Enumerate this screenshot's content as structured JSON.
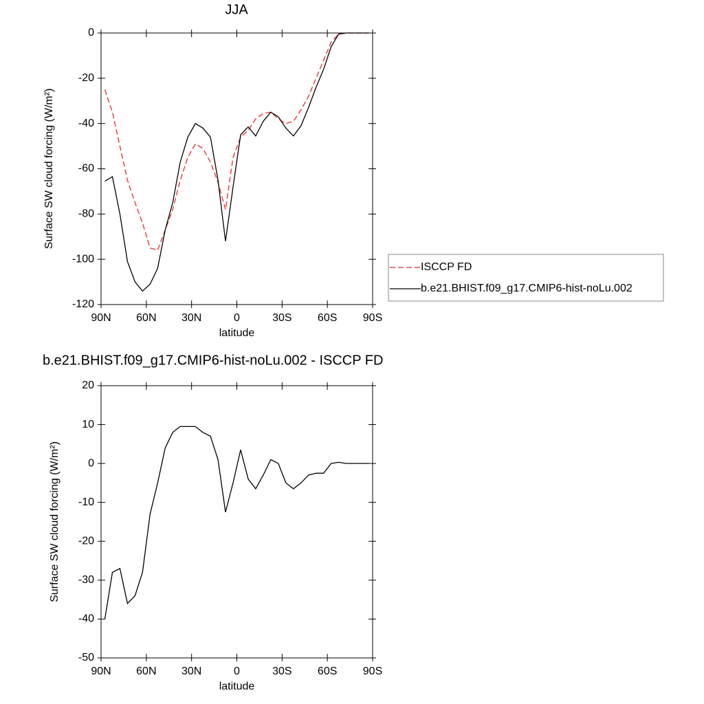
{
  "chart_data": [
    {
      "type": "line",
      "title": "JJA",
      "xlabel": "latitude",
      "ylabel": "Surface SW cloud forcing (W/m²)",
      "x": [
        87.5,
        82.5,
        77.5,
        72.5,
        67.5,
        62.5,
        57.5,
        52.5,
        47.5,
        42.5,
        37.5,
        32.5,
        27.5,
        22.5,
        17.5,
        12.5,
        7.5,
        2.5,
        -2.5,
        -7.5,
        -12.5,
        -17.5,
        -22.5,
        -27.5,
        -32.5,
        -37.5,
        -42.5,
        -47.5,
        -52.5,
        -57.5,
        -62.5,
        -67.5,
        -72.5,
        -77.5,
        -82.5,
        -87.5
      ],
      "series": [
        {
          "name": "ISCCP FD",
          "color": "#e8282c",
          "dashed": true,
          "values": [
            -25,
            -35,
            -50,
            -65,
            -75,
            -84,
            -95,
            -96,
            -87,
            -78,
            -65,
            -55,
            -49,
            -51,
            -57,
            -66,
            -78,
            -55,
            -46,
            -43,
            -38,
            -35.5,
            -35,
            -38,
            -40,
            -39,
            -34,
            -28,
            -20,
            -12,
            -4,
            -0.5,
            0,
            0,
            0,
            0
          ]
        },
        {
          "name": "b.e21.BHIST.f09_g17.CMIP6-hist-noLu.002",
          "color": "#000000",
          "dashed": false,
          "values": [
            -65.5,
            -63.5,
            -80,
            -101,
            -110,
            -114,
            -111,
            -104,
            -87,
            -75,
            -57,
            -46,
            -40,
            -42,
            -46,
            -65,
            -92,
            -68,
            -45,
            -41.5,
            -45.5,
            -39,
            -35,
            -37,
            -42,
            -45.5,
            -41,
            -33,
            -24,
            -16,
            -6,
            -0.5,
            0,
            0,
            0,
            0
          ]
        }
      ],
      "xlim": [
        90,
        -90
      ],
      "xticks": [
        {
          "value": 90,
          "label": "90N"
        },
        {
          "value": 60,
          "label": "60N"
        },
        {
          "value": 30,
          "label": "30N"
        },
        0,
        {
          "value": -30,
          "label": "30S"
        },
        {
          "value": -60,
          "label": "60S"
        },
        {
          "value": -90,
          "label": "90S"
        }
      ],
      "ylim": [
        -120,
        0
      ],
      "yticks": [
        0,
        -20,
        -40,
        -60,
        -80,
        -100,
        -120
      ],
      "legend": "right"
    },
    {
      "type": "line",
      "title": "b.e21.BHIST.f09_g17.CMIP6-hist-noLu.002 - ISCCP FD",
      "xlabel": "latitude",
      "ylabel": "Surface SW cloud forcing (W/m²)",
      "x": [
        87.5,
        82.5,
        77.5,
        72.5,
        67.5,
        62.5,
        57.5,
        52.5,
        47.5,
        42.5,
        37.5,
        32.5,
        27.5,
        22.5,
        17.5,
        12.5,
        7.5,
        2.5,
        -2.5,
        -7.5,
        -12.5,
        -17.5,
        -22.5,
        -27.5,
        -32.5,
        -37.5,
        -42.5,
        -47.5,
        -52.5,
        -57.5,
        -62.5,
        -67.5,
        -72.5,
        -77.5,
        -82.5,
        -87.5
      ],
      "series": [
        {
          "color": "#000000",
          "dashed": false,
          "values": [
            -40,
            -28,
            -27,
            -36,
            -34,
            -28,
            -13,
            -5,
            4,
            8,
            9.5,
            9.5,
            9.5,
            8,
            7,
            1,
            -12.5,
            -5,
            3.5,
            -4,
            -6.5,
            -3,
            1,
            0,
            -5,
            -6.5,
            -5,
            -3,
            -2.5,
            -2.5,
            0,
            0.3,
            0,
            0,
            0,
            0
          ]
        }
      ],
      "xlim": [
        90,
        -90
      ],
      "xticks": [
        {
          "value": 90,
          "label": "90N"
        },
        {
          "value": 60,
          "label": "60N"
        },
        {
          "value": 30,
          "label": "30N"
        },
        0,
        {
          "value": -30,
          "label": "30S"
        },
        {
          "value": -60,
          "label": "60S"
        },
        {
          "value": -90,
          "label": "90S"
        }
      ],
      "ylim": [
        -50,
        20
      ],
      "yticks": [
        20,
        10,
        0,
        -10,
        -20,
        -30,
        -40,
        -50
      ]
    }
  ]
}
